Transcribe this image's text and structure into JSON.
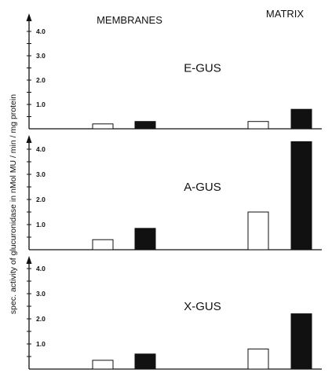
{
  "chart_data": {
    "type": "bar",
    "ylabel": "spec. activity of glucuronidase in nMol MU / min / mg protein",
    "column_headers": [
      "MEMBRANES",
      "MATRIX"
    ],
    "yticks": [
      "1.0",
      "2.0",
      "3.0",
      "4.0"
    ],
    "ylim": [
      0,
      4.5
    ],
    "bar_colors": {
      "open": "#ffffff",
      "filled": "#111111"
    },
    "panels": [
      {
        "label": "E-GUS",
        "categories": [
          "MEMBRANES",
          "MATRIX"
        ],
        "series": [
          {
            "fill": "open",
            "values": [
              0.2,
              0.3
            ]
          },
          {
            "fill": "filled",
            "values": [
              0.3,
              0.8
            ]
          }
        ]
      },
      {
        "label": "A-GUS",
        "categories": [
          "MEMBRANES",
          "MATRIX"
        ],
        "series": [
          {
            "fill": "open",
            "values": [
              0.4,
              1.5
            ]
          },
          {
            "fill": "filled",
            "values": [
              0.85,
              4.3
            ]
          }
        ]
      },
      {
        "label": "X-GUS",
        "categories": [
          "MEMBRANES",
          "MATRIX"
        ],
        "series": [
          {
            "fill": "open",
            "values": [
              0.35,
              0.8
            ]
          },
          {
            "fill": "filled",
            "values": [
              0.6,
              2.2
            ]
          }
        ]
      }
    ]
  }
}
